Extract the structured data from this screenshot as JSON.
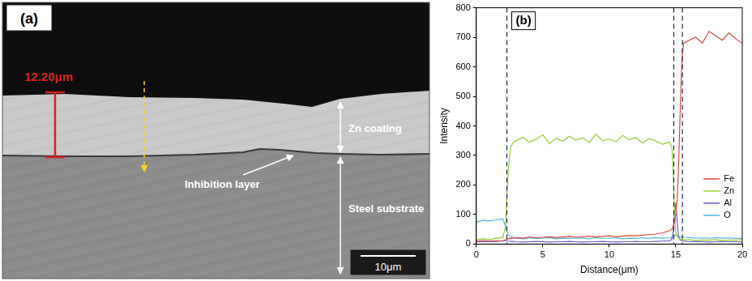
{
  "panel_a": {
    "label": "(a)",
    "measurement": "12.20μm",
    "coating_label": "Zn coating",
    "inhibition_label": "Inhibition layer",
    "substrate_label": "Steel substrate",
    "scale_bar": "10μm"
  },
  "chart_data": {
    "type": "line",
    "label": "(b)",
    "x_label": "Distance(μm)",
    "y_label": "Intensity",
    "x": [
      0,
      0.5,
      1,
      1.5,
      2,
      2.2,
      2.4,
      2.6,
      2.8,
      3,
      3.5,
      4,
      4.5,
      5,
      5.5,
      6,
      6.5,
      7,
      7.5,
      8,
      8.5,
      9,
      9.5,
      10,
      10.5,
      11,
      11.5,
      12,
      12.5,
      13,
      13.5,
      14,
      14.5,
      14.7,
      14.8,
      14.9,
      15,
      15.1,
      15.2,
      15.3,
      15.4,
      15.5,
      15.6,
      16,
      16.5,
      17,
      17.5,
      18,
      18.5,
      19,
      19.5,
      20
    ],
    "series": [
      {
        "name": "Fe",
        "color": "#d9473f",
        "values": [
          10,
          12,
          10,
          11,
          12,
          14,
          18,
          20,
          20,
          22,
          20,
          24,
          21,
          23,
          25,
          22,
          24,
          26,
          23,
          25,
          27,
          24,
          26,
          28,
          25,
          27,
          29,
          28,
          30,
          32,
          34,
          38,
          45,
          50,
          60,
          75,
          100,
          150,
          250,
          400,
          550,
          650,
          680,
          690,
          700,
          680,
          720,
          705,
          690,
          715,
          695,
          680
        ]
      },
      {
        "name": "Zn",
        "color": "#9acd32",
        "values": [
          15,
          18,
          15,
          20,
          22,
          60,
          250,
          330,
          345,
          350,
          362,
          345,
          355,
          370,
          340,
          358,
          348,
          365,
          352,
          360,
          344,
          372,
          350,
          356,
          346,
          368,
          353,
          361,
          342,
          357,
          349,
          338,
          345,
          330,
          250,
          120,
          40,
          25,
          20,
          18,
          15,
          15,
          14,
          15,
          12,
          14,
          13,
          15,
          12,
          14,
          13,
          15
        ]
      },
      {
        "name": "Al",
        "color": "#6a5acd",
        "values": [
          8,
          9,
          8,
          9,
          10,
          12,
          10,
          9,
          9,
          8,
          7,
          8,
          9,
          8,
          7,
          8,
          8,
          9,
          8,
          7,
          8,
          8,
          9,
          8,
          7,
          8,
          8,
          9,
          8,
          8,
          9,
          10,
          11,
          15,
          40,
          100,
          140,
          80,
          30,
          15,
          12,
          10,
          10,
          8,
          9,
          8,
          7,
          8,
          9,
          8,
          8,
          7
        ]
      },
      {
        "name": "O",
        "color": "#4fb8d8",
        "values": [
          75,
          80,
          78,
          82,
          85,
          60,
          30,
          25,
          22,
          20,
          18,
          21,
          19,
          20,
          22,
          18,
          20,
          19,
          21,
          20,
          18,
          22,
          19,
          20,
          21,
          18,
          20,
          19,
          21,
          20,
          22,
          20,
          21,
          22,
          24,
          28,
          30,
          28,
          26,
          25,
          24,
          24,
          23,
          22,
          20,
          21,
          19,
          22,
          20,
          21,
          19,
          20
        ]
      }
    ],
    "xlim": [
      0,
      20
    ],
    "xticks": [
      0,
      5,
      10,
      15,
      20
    ],
    "ylim": [
      0,
      800
    ],
    "yticks": [
      0,
      100,
      200,
      300,
      400,
      500,
      600,
      700,
      800
    ],
    "vlines": [
      2.3,
      14.85,
      15.5
    ],
    "grid": false,
    "legend": "lower right",
    "marker": "none",
    "line_style": "solid"
  }
}
